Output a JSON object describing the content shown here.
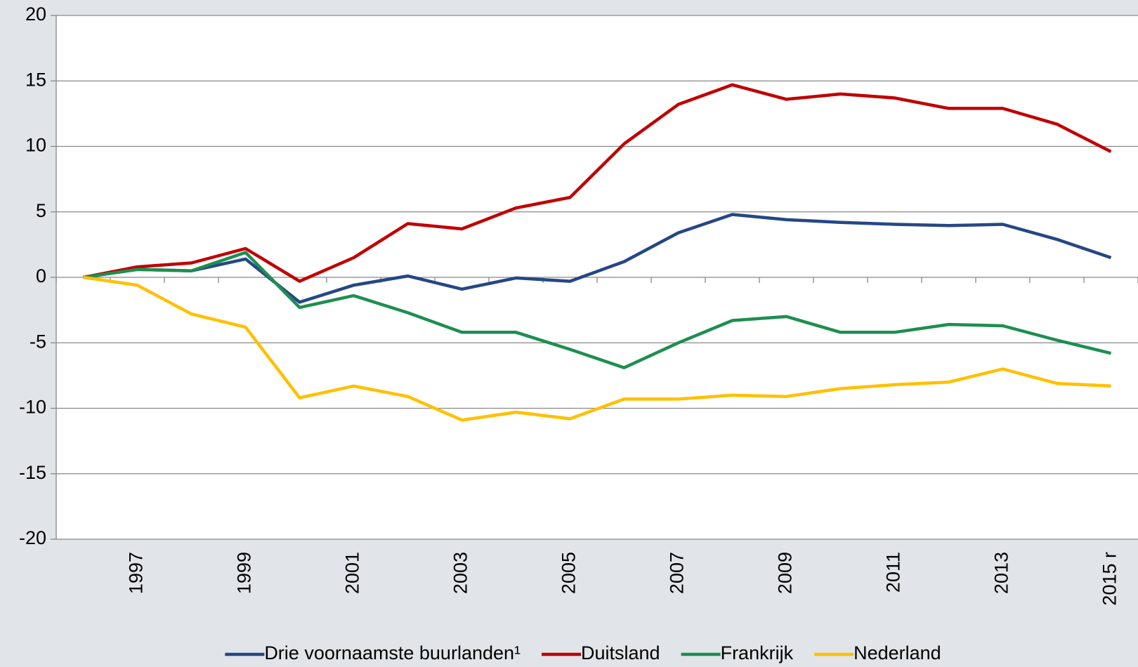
{
  "chart_data": {
    "type": "line",
    "categories": [
      null,
      "1997",
      null,
      "1999",
      null,
      "2001",
      null,
      "2003",
      null,
      "2005",
      null,
      "2007",
      null,
      "2009",
      null,
      "2011",
      null,
      "2013",
      null,
      "2015 r"
    ],
    "series": [
      {
        "name": "Drie voornaamste buurlanden¹",
        "color": "#254785",
        "values": [
          0,
          0.6,
          0.5,
          1.4,
          -1.9,
          -0.6,
          0.1,
          -0.9,
          -0.05,
          -0.3,
          1.2,
          3.4,
          4.8,
          4.4,
          4.2,
          4.05,
          3.95,
          4.05,
          2.9,
          1.5
        ]
      },
      {
        "name": "Duitsland",
        "color": "#c00000",
        "values": [
          0,
          0.8,
          1.1,
          2.2,
          -0.3,
          1.5,
          4.1,
          3.7,
          5.3,
          6.1,
          10.2,
          13.2,
          14.7,
          13.6,
          14.0,
          13.7,
          12.9,
          12.9,
          11.7,
          9.6
        ]
      },
      {
        "name": "Frankrijk",
        "color": "#1e8e50",
        "values": [
          0,
          0.6,
          0.5,
          1.9,
          -2.3,
          -1.4,
          -2.7,
          -4.2,
          -4.2,
          -5.5,
          -6.9,
          -5.0,
          -3.3,
          -3.0,
          -4.2,
          -4.2,
          -3.6,
          -3.7,
          -4.8,
          -5.8
        ]
      },
      {
        "name": "Nederland",
        "color": "#ffc000",
        "values": [
          0,
          -0.6,
          -2.8,
          -3.8,
          -9.2,
          -8.3,
          -9.1,
          -10.9,
          -10.3,
          -10.8,
          -9.3,
          -9.3,
          -9.0,
          -9.1,
          -8.5,
          -8.2,
          -8.0,
          -7.0,
          -8.1,
          -8.3
        ]
      }
    ],
    "ylim": [
      -20,
      20
    ],
    "yticks": [
      -20,
      -15,
      -10,
      -5,
      0,
      5,
      10,
      15,
      20
    ],
    "grid": true,
    "legend": "bottom"
  }
}
